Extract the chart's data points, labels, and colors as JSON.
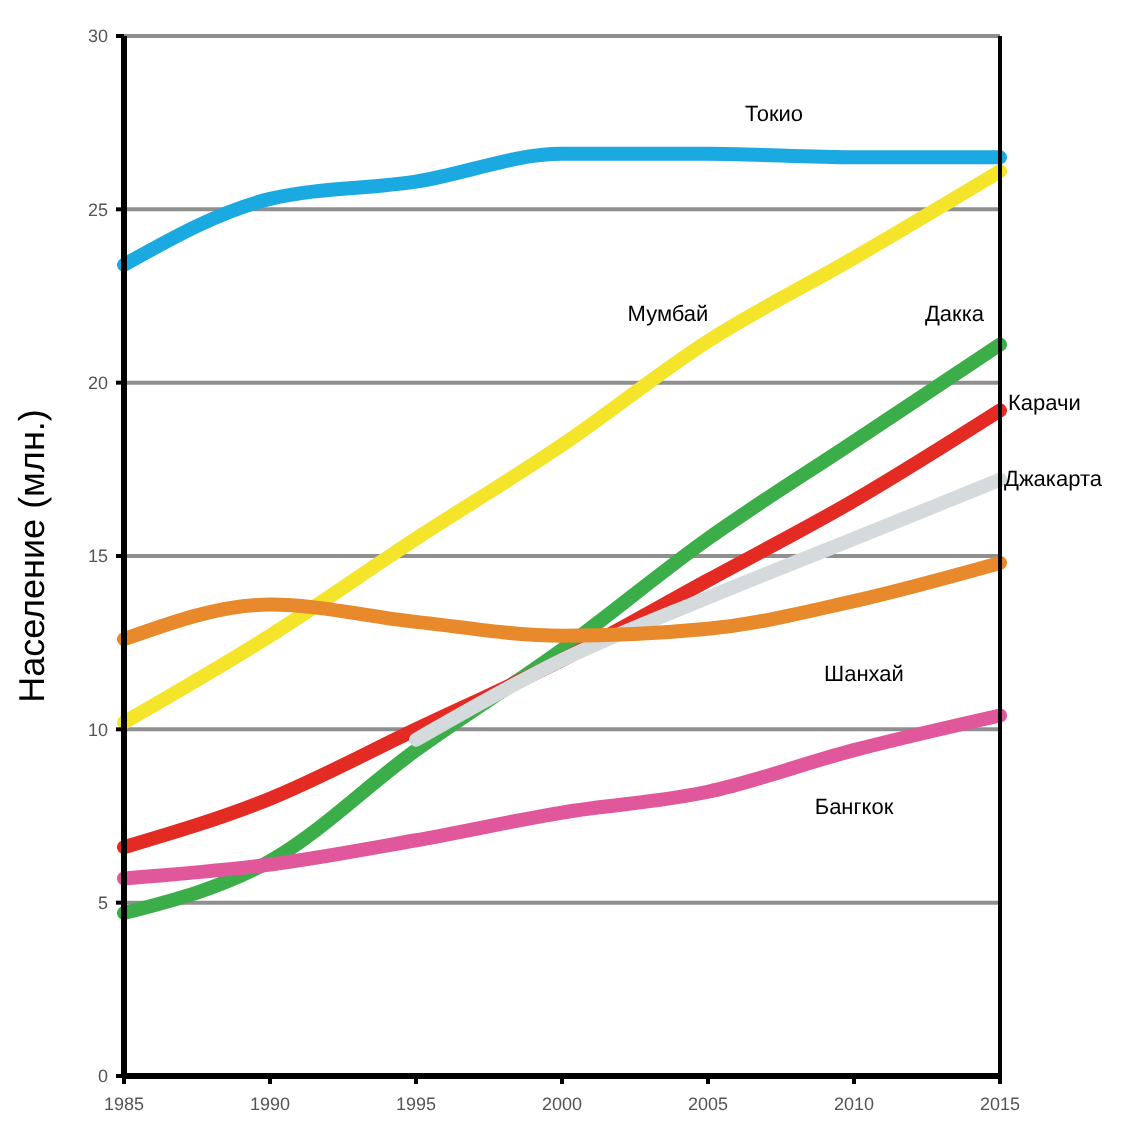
{
  "chart_data": {
    "type": "line",
    "ylabel": "Население (млн.)",
    "x": [
      1985,
      1990,
      1995,
      2000,
      2005,
      2010,
      2015
    ],
    "xlim": [
      1985,
      2015
    ],
    "xticks": [
      1985,
      1990,
      1995,
      2000,
      2005,
      2010,
      2015
    ],
    "ylim": [
      0,
      30
    ],
    "yticks": [
      0,
      5,
      10,
      15,
      20,
      25,
      30
    ],
    "grid": "y",
    "series": [
      {
        "name": "Токио",
        "color": "#1ba9e1",
        "values": [
          23.4,
          25.3,
          25.8,
          26.6,
          26.6,
          26.5,
          26.5
        ]
      },
      {
        "name": "Мумбай",
        "color": "#f5e52a",
        "values": [
          10.2,
          12.7,
          15.5,
          18.2,
          21.2,
          23.6,
          26.1
        ]
      },
      {
        "name": "Дакка",
        "color": "#3bae49",
        "values": [
          4.7,
          6.2,
          9.4,
          12.3,
          15.5,
          18.3,
          21.1
        ]
      },
      {
        "name": "Карачи",
        "color": "#e32b24",
        "values": [
          6.6,
          8.0,
          10.0,
          12.0,
          14.3,
          16.6,
          19.2
        ]
      },
      {
        "name": "Джакарта",
        "color": "#d5dadd",
        "values": [
          null,
          null,
          9.7,
          12.0,
          13.8,
          15.5,
          17.2
        ]
      },
      {
        "name": "Шанхай",
        "color": "#e8892b",
        "values": [
          12.6,
          13.6,
          13.1,
          12.7,
          12.9,
          13.7,
          14.8
        ]
      },
      {
        "name": "Бангкок",
        "color": "#e0579b",
        "values": [
          5.7,
          6.1,
          6.8,
          7.6,
          8.2,
          9.4,
          10.4
        ]
      }
    ]
  }
}
